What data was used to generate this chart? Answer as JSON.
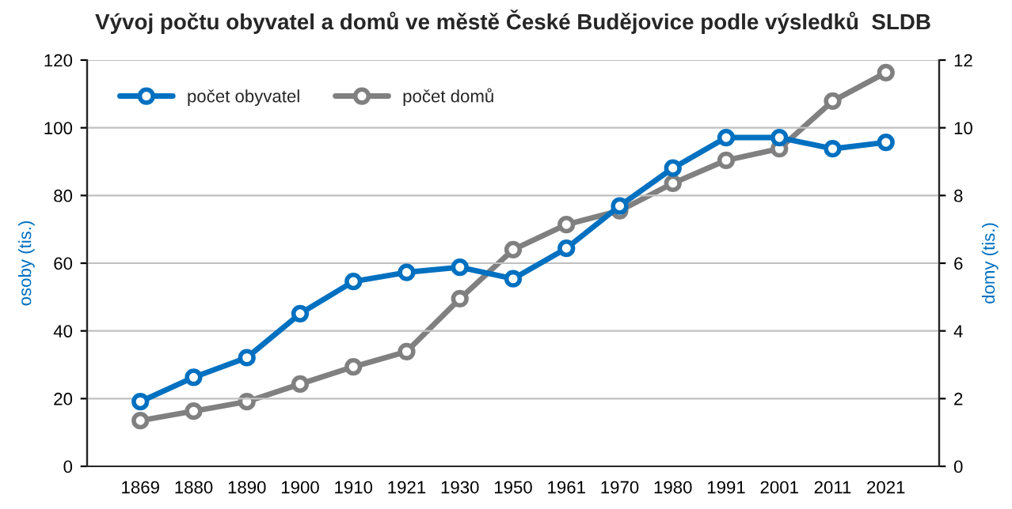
{
  "chart_data": {
    "type": "line",
    "title": "Vývoj počtu obyvatel a domů ve městě České Budějovice podle výsledků  SLDB",
    "categories": [
      "1869",
      "1880",
      "1890",
      "1900",
      "1910",
      "1921",
      "1930",
      "1950",
      "1961",
      "1970",
      "1980",
      "1991",
      "2001",
      "2011",
      "2021"
    ],
    "series": [
      {
        "name": "počet obyvatel",
        "color": "#0070c0",
        "values": [
          19.1,
          26.3,
          32.1,
          45.1,
          54.6,
          57.3,
          58.8,
          55.4,
          64.4,
          76.9,
          88.1,
          97.1,
          97.1,
          93.8,
          95.7
        ]
      },
      {
        "name": "počet domů",
        "color": "#808080",
        "axis": "y2",
        "values": [
          1.35,
          1.63,
          1.91,
          2.43,
          2.94,
          3.39,
          4.95,
          6.4,
          7.14,
          7.55,
          8.36,
          9.04,
          9.38,
          10.79,
          11.63
        ]
      }
    ],
    "ylabel": "osoby (tis.)",
    "y2label": "domy (tis.)",
    "ylim": [
      0,
      120
    ],
    "yticks": [
      0,
      20,
      40,
      60,
      80,
      100,
      120
    ],
    "y2lim": [
      0,
      12
    ],
    "y2ticks": [
      0,
      2,
      4,
      6,
      8,
      10,
      12
    ],
    "grid": "y",
    "legend": "top left",
    "marker": "circle",
    "line_style": "solid"
  }
}
